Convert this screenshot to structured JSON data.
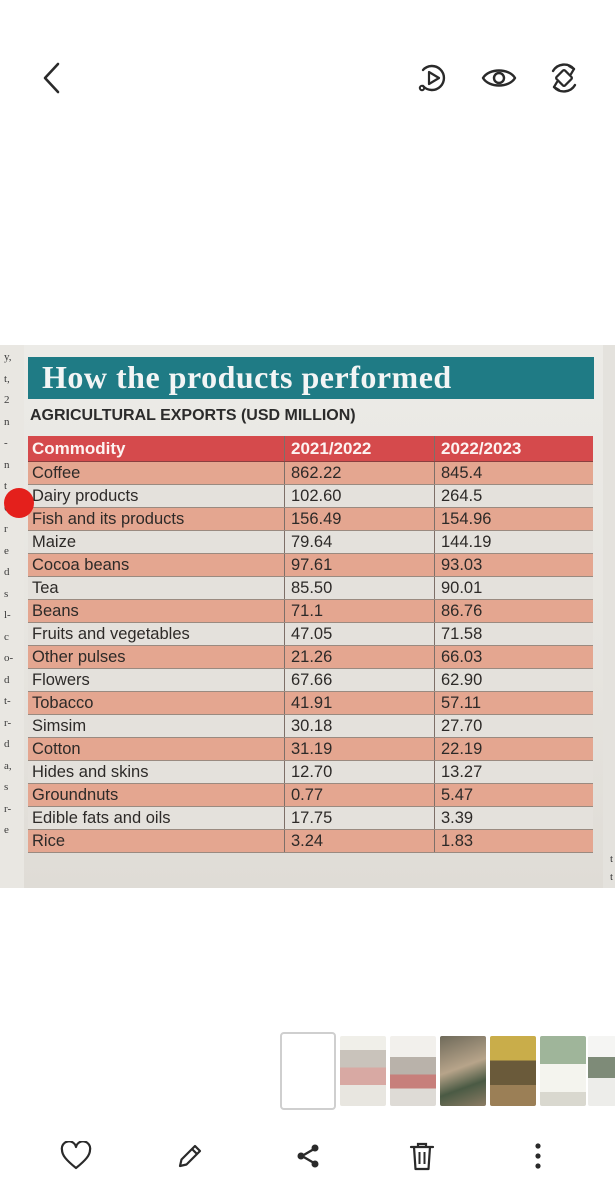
{
  "toolbar": {
    "icons": [
      "back-icon",
      "motion-photo-icon",
      "eye-icon",
      "rotate-icon"
    ]
  },
  "photo": {
    "banner": "How the products performed",
    "subtitle": "AGRICULTURAL EXPORTS (USD MILLION)",
    "table": {
      "headers": [
        "Commodity",
        "2021/2022",
        "2022/2023"
      ],
      "rows": [
        [
          "Coffee",
          "862.22",
          "845.4"
        ],
        [
          "Dairy products",
          "102.60",
          "264.5"
        ],
        [
          "Fish and its products",
          "156.49",
          "154.96"
        ],
        [
          "Maize",
          "79.64",
          "144.19"
        ],
        [
          "Cocoa beans",
          "97.61",
          "93.03"
        ],
        [
          "Tea",
          "85.50",
          "90.01"
        ],
        [
          "Beans",
          "71.1",
          "86.76"
        ],
        [
          "Fruits and vegetables",
          "47.05",
          "71.58"
        ],
        [
          "Other pulses",
          "21.26",
          "66.03"
        ],
        [
          "Flowers",
          "67.66",
          "62.90"
        ],
        [
          "Tobacco",
          "41.91",
          "57.11"
        ],
        [
          "Simsim",
          "30.18",
          "27.70"
        ],
        [
          "Cotton",
          "31.19",
          "22.19"
        ],
        [
          "Hides and skins",
          "12.70",
          "13.27"
        ],
        [
          "Groundnuts",
          "0.77",
          "5.47"
        ],
        [
          "Edible fats and oils",
          "17.75",
          "3.39"
        ],
        [
          "Rice",
          "3.24",
          "1.83"
        ]
      ]
    },
    "margin_left": [
      "y,",
      "t,",
      "2",
      "n",
      "-",
      "n",
      "t",
      "6",
      "r",
      "e",
      "d",
      "s",
      "l-",
      "c",
      "o-",
      "d",
      "t-",
      "r-",
      "d",
      "a,",
      "s",
      "r-",
      "e"
    ],
    "margin_right": [
      "t",
      "t"
    ]
  },
  "colors": {
    "banner": "#1f7b85",
    "header_row": "#d54a4c",
    "odd_row": "#e4a690",
    "even_row": "#e4e1dc",
    "mark": "#e4201c"
  },
  "bottom_bar": {
    "icons": [
      "heart-icon",
      "pencil-icon",
      "share-icon",
      "trash-icon",
      "more-vertical-icon"
    ]
  }
}
